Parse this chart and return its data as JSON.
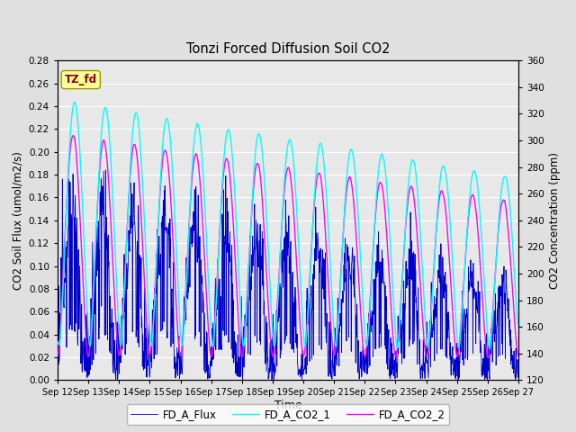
{
  "title": "Tonzi Forced Diffusion Soil CO2",
  "xlabel": "Time",
  "ylabel_left": "CO2 Soil Flux (umol/m2/s)",
  "ylabel_right": "CO2 Concentration (ppm)",
  "ylim_left": [
    0.0,
    0.28
  ],
  "ylim_right": [
    120,
    360
  ],
  "yticks_left": [
    0.0,
    0.02,
    0.04,
    0.06,
    0.08,
    0.1,
    0.12,
    0.14,
    0.16,
    0.18,
    0.2,
    0.22,
    0.24,
    0.26,
    0.28
  ],
  "yticks_right": [
    120,
    140,
    160,
    180,
    200,
    220,
    240,
    260,
    280,
    300,
    320,
    340,
    360
  ],
  "xtick_labels": [
    "Sep 12",
    "Sep 13",
    "Sep 14",
    "Sep 15",
    "Sep 16",
    "Sep 17",
    "Sep 18",
    "Sep 19",
    "Sep 20",
    "Sep 21",
    "Sep 22",
    "Sep 23",
    "Sep 24",
    "Sep 25",
    "Sep 26",
    "Sep 27"
  ],
  "color_flux": "#0000CC",
  "color_co2_1": "#00FFFF",
  "color_co2_2": "#FF00FF",
  "label_flux": "FD_A_Flux",
  "label_co2_1": "FD_A_CO2_1",
  "label_co2_2": "FD_A_CO2_2",
  "tag_text": "TZ_fd",
  "tag_color": "#FFFF99",
  "tag_text_color": "#880000",
  "bg_color": "#E0E0E0",
  "plot_bg_color": "#E8E8E8",
  "n_days": 15,
  "n_points_per_day": 96,
  "seed": 42
}
